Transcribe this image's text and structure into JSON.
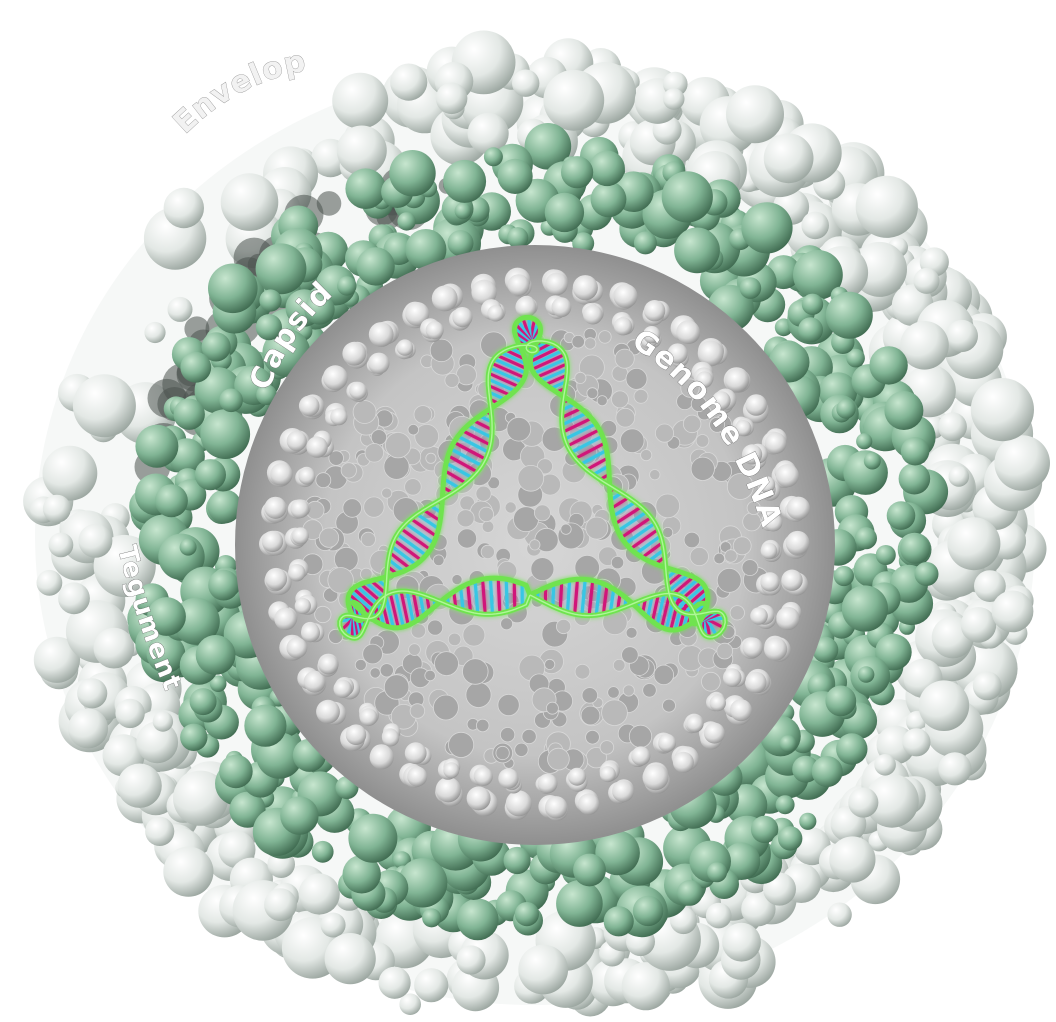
{
  "labels": {
    "envelope": "Envelope",
    "capsid": "Capsid",
    "tegument": "Tegument",
    "genome": "Genome DNA"
  },
  "colors": {
    "background": "#ffffff",
    "envelope": "#e4e8e6",
    "envelope_shadow": "#9ea7a2",
    "tegument": "#7fb393",
    "tegument_dark": "#4f7d61",
    "capsid": "#c8c8c8",
    "capsid_dark": "#7a7a7a",
    "dna_backbone": "#6fe34f",
    "dna_rungs": [
      "#d0147a",
      "#a523c9",
      "#38c6e4",
      "#b2243a"
    ]
  }
}
